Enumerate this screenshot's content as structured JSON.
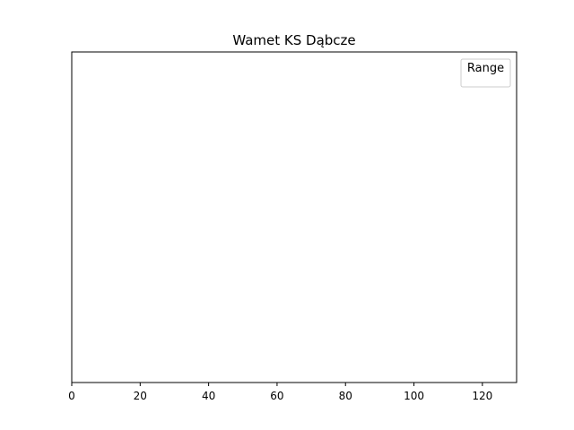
{
  "chart_data": {
    "type": "bar",
    "title": "Wamet KS Dąbcze",
    "xlabel": "",
    "ylabel": "",
    "xlim": [
      0,
      130
    ],
    "xticks": [
      0,
      20,
      40,
      60,
      80,
      100,
      120
    ],
    "show_yaxis_ticks": false,
    "grid": false,
    "legend": {
      "title": "Range",
      "placement": "top-right",
      "entries": []
    },
    "series": []
  }
}
